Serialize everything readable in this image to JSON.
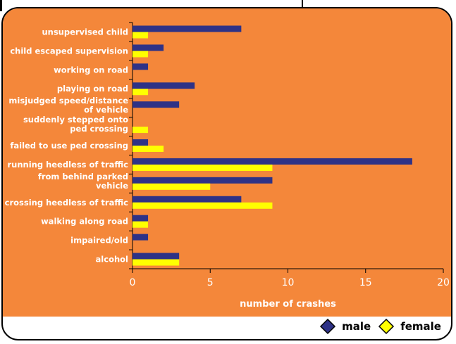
{
  "chart_data": {
    "type": "bar",
    "orientation": "horizontal",
    "categories": [
      "unsupervised child",
      "child escaped supervision",
      "working on road",
      "playing on road",
      "misjudged speed/distance of vehicle",
      "suddenly stepped onto ped crossing",
      "failed to use ped crossing",
      "running heedless of traffic",
      "from behind parked vehicle",
      "crossing heedless of traffic",
      "walking along road",
      "impaired/old",
      "alcohol"
    ],
    "series": [
      {
        "name": "male",
        "color": "#2e3286",
        "values": [
          7,
          2,
          1,
          4,
          3,
          0,
          1,
          18,
          9,
          7,
          1,
          1,
          3
        ]
      },
      {
        "name": "female",
        "color": "#ffff00",
        "values": [
          1,
          1,
          0,
          1,
          0,
          1,
          2,
          9,
          5,
          9,
          1,
          0,
          3
        ]
      }
    ],
    "xlabel": "number of crashes",
    "ylabel": "",
    "xlim": [
      0,
      20
    ],
    "xticks": [
      "0",
      "5",
      "10",
      "15",
      "20"
    ],
    "grid": false,
    "legend_position": "bottom-right"
  },
  "colors": {
    "background": "#f4873a",
    "male": "#2e3286",
    "female": "#ffff00",
    "text": "#ffffff"
  }
}
